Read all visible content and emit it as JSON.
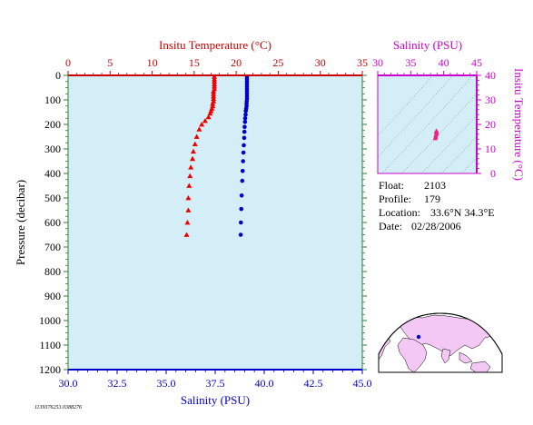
{
  "chart_data": [
    {
      "type": "scatter",
      "top_axis": {
        "label": "Insitu Temperature (°C)",
        "range": [
          0,
          35
        ],
        "ticks": [
          0,
          5,
          10,
          15,
          20,
          25,
          30,
          35
        ],
        "color": "#cc0000"
      },
      "bottom_axis": {
        "label": "Salinity (PSU)",
        "range": [
          30,
          45
        ],
        "ticks": [
          "30.0",
          "32.5",
          "35.0",
          "37.5",
          "40.0",
          "42.5",
          "45.0"
        ],
        "color": "#0000cc"
      },
      "ylabel": "Pressure (decibar)",
      "ylim": [
        1200,
        0
      ],
      "yticks": [
        0,
        100,
        200,
        300,
        400,
        500,
        600,
        700,
        800,
        900,
        1000,
        1100,
        1200
      ],
      "background": "#d4eef8",
      "series": [
        {
          "kind": "temperature",
          "marker": "triangle",
          "color": "#ee0000",
          "points": [
            [
              17.4,
              5
            ],
            [
              17.4,
              15
            ],
            [
              17.4,
              25
            ],
            [
              17.4,
              35
            ],
            [
              17.4,
              45
            ],
            [
              17.4,
              55
            ],
            [
              17.3,
              65
            ],
            [
              17.3,
              75
            ],
            [
              17.3,
              85
            ],
            [
              17.3,
              95
            ],
            [
              17.3,
              105
            ],
            [
              17.2,
              115
            ],
            [
              17.2,
              125
            ],
            [
              17.1,
              135
            ],
            [
              17.0,
              145
            ],
            [
              16.9,
              155
            ],
            [
              16.7,
              170
            ],
            [
              16.3,
              185
            ],
            [
              15.9,
              200
            ],
            [
              15.6,
              220
            ],
            [
              15.3,
              250
            ],
            [
              15.1,
              280
            ],
            [
              14.9,
              310
            ],
            [
              14.8,
              340
            ],
            [
              14.6,
              375
            ],
            [
              14.5,
              410
            ],
            [
              14.4,
              450
            ],
            [
              14.3,
              500
            ],
            [
              14.3,
              550
            ],
            [
              14.2,
              600
            ],
            [
              14.1,
              650
            ]
          ]
        },
        {
          "kind": "salinity",
          "marker": "circle",
          "color": "#0000cc",
          "points": [
            [
              39.12,
              5
            ],
            [
              39.12,
              15
            ],
            [
              39.12,
              25
            ],
            [
              39.12,
              35
            ],
            [
              39.12,
              45
            ],
            [
              39.12,
              55
            ],
            [
              39.12,
              65
            ],
            [
              39.12,
              75
            ],
            [
              39.12,
              85
            ],
            [
              39.12,
              95
            ],
            [
              39.11,
              105
            ],
            [
              39.1,
              115
            ],
            [
              39.1,
              125
            ],
            [
              39.08,
              135
            ],
            [
              39.06,
              145
            ],
            [
              39.05,
              160
            ],
            [
              39.03,
              175
            ],
            [
              39.02,
              190
            ],
            [
              39.0,
              210
            ],
            [
              38.99,
              230
            ],
            [
              38.98,
              255
            ],
            [
              38.96,
              285
            ],
            [
              38.94,
              315
            ],
            [
              38.92,
              350
            ],
            [
              38.9,
              390
            ],
            [
              38.88,
              430
            ],
            [
              38.85,
              490
            ],
            [
              38.83,
              545
            ],
            [
              38.81,
              600
            ],
            [
              38.8,
              650
            ]
          ]
        }
      ]
    },
    {
      "type": "scatter",
      "xlabel": "Salinity (PSU)",
      "ylabel": "Insitu Temperature (°C)",
      "xlim": [
        30,
        45
      ],
      "xticks": [
        30,
        35,
        40,
        45
      ],
      "ylim": [
        0,
        40
      ],
      "yticks": [
        0,
        10,
        20,
        30,
        40
      ],
      "color": "#cc00cc",
      "marker_color": "#ee2288",
      "points": [
        [
          38.9,
          17.4
        ],
        [
          38.9,
          17.2
        ],
        [
          38.95,
          16.8
        ],
        [
          38.9,
          16.3
        ],
        [
          38.85,
          15.9
        ],
        [
          38.8,
          15.5
        ],
        [
          38.78,
          15.0
        ],
        [
          38.75,
          14.6
        ],
        [
          38.7,
          14.3
        ],
        [
          38.85,
          17.0
        ]
      ]
    }
  ],
  "info": {
    "float_label": "Float:",
    "float_value": "2103",
    "profile_label": "Profile:",
    "profile_value": "179",
    "location_label": "Location:",
    "location_value": "33.6°N  34.3°E",
    "date_label": "Date:",
    "date_value": "02/28/2006"
  },
  "footer_code": "1139376253.0388276",
  "map": {
    "ocean_color": "#ffffff",
    "land_color": "#f4c8f4",
    "marker_lat": 33.6,
    "marker_lon": 34.3,
    "marker_color": "#0000cc"
  }
}
